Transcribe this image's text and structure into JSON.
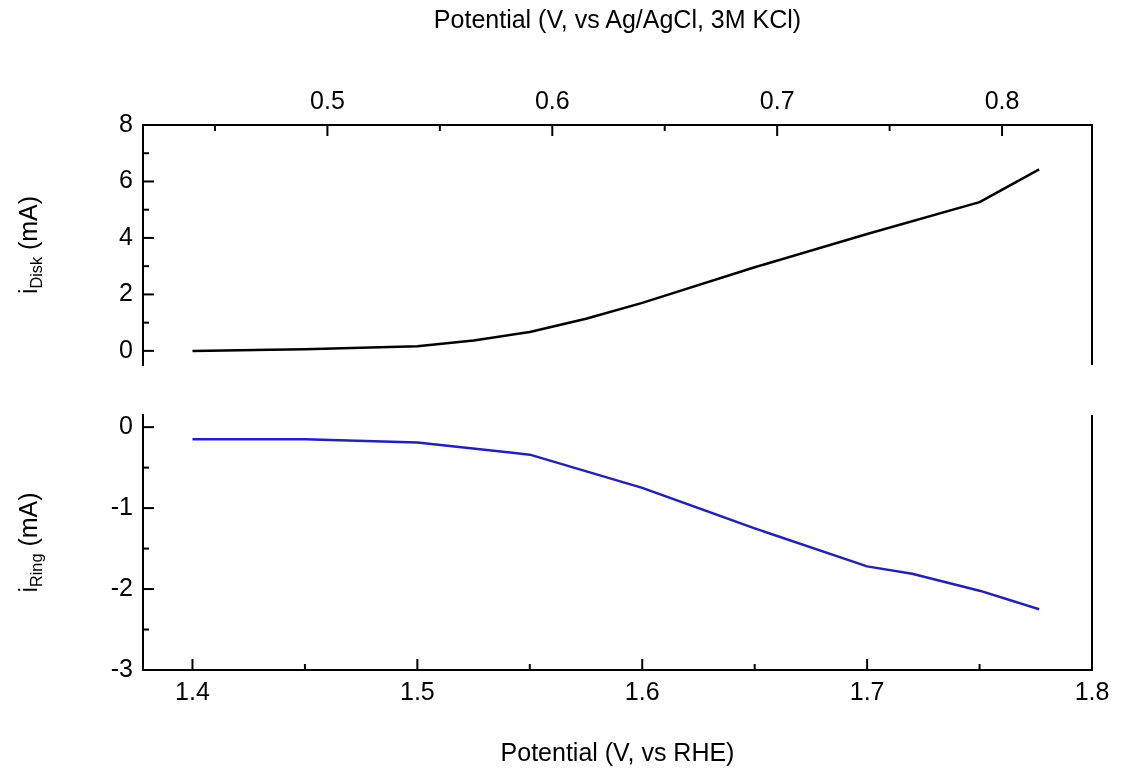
{
  "chart_data": [
    {
      "type": "line",
      "x2label": "Potential (V, vs Ag/AgCl, 3M KCl)",
      "ylabel": "i$_{Disk}$ (mA)",
      "xlim": [
        1.378,
        1.8
      ],
      "x2lim": [
        0.418,
        0.84
      ],
      "x2ticks": [
        {
          "value": 0.45,
          "label": null
        },
        0.5,
        {
          "value": 0.55,
          "label": null
        },
        0.6,
        {
          "value": 0.65,
          "label": null
        },
        0.7,
        {
          "value": 0.75,
          "label": null
        },
        0.8
      ],
      "ylim": [
        -0.5,
        8
      ],
      "yticks": [
        0,
        {
          "value": 1,
          "label": null
        },
        2,
        {
          "value": 3,
          "label": null
        },
        4,
        {
          "value": 5,
          "label": null
        },
        6,
        {
          "value": 7,
          "label": null
        },
        8
      ],
      "tick_labels": "y",
      "marker": "none",
      "series": [
        {
          "color": "#000000",
          "x": [
            1.4,
            1.45,
            1.5,
            1.525,
            1.55,
            1.575,
            1.6,
            1.65,
            1.7,
            1.75,
            1.7765
          ],
          "values": [
            0.0,
            0.06,
            0.16,
            0.37,
            0.67,
            1.14,
            1.7,
            2.96,
            4.14,
            5.27,
            6.43
          ]
        }
      ]
    },
    {
      "type": "line",
      "xlabel": "Potential (V, vs RHE)",
      "ylabel": "i$_{Ring}$ (mA)",
      "xlim": [
        1.378,
        1.8
      ],
      "xticks": [
        1.4,
        {
          "value": 1.45,
          "label": null
        },
        1.5,
        {
          "value": 1.55,
          "label": null
        },
        1.6,
        {
          "value": 1.65,
          "label": null
        },
        1.7,
        {
          "value": 1.75,
          "label": null
        },
        1.8
      ],
      "ylim": [
        -3,
        0.15
      ],
      "yticks": [
        -3,
        {
          "value": -2.5,
          "label": null
        },
        -2,
        {
          "value": -1.5,
          "label": null
        },
        -1,
        {
          "value": -0.5,
          "label": null
        },
        0
      ],
      "marker": "none",
      "series": [
        {
          "color": "#1f1fc8",
          "x": [
            1.4,
            1.45,
            1.5,
            1.55,
            1.6,
            1.65,
            1.7,
            1.72,
            1.75,
            1.7765
          ],
          "values": [
            -0.15,
            -0.15,
            -0.19,
            -0.34,
            -0.75,
            -1.25,
            -1.72,
            -1.81,
            -2.02,
            -2.25
          ]
        }
      ]
    }
  ]
}
